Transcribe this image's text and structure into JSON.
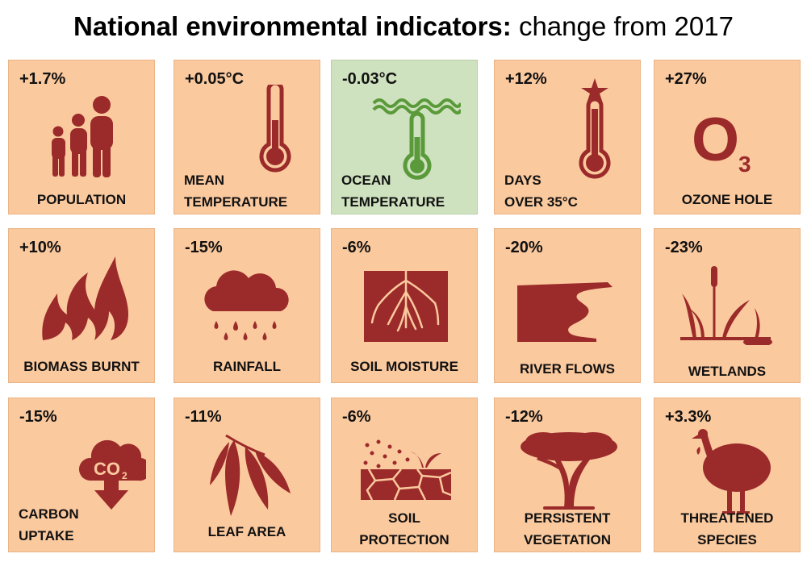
{
  "title": {
    "bold": "National environmental indicators:",
    "regular": "change from 2017"
  },
  "colors": {
    "tile": "#fbc99e",
    "tile_ocean": "#cfe2bf",
    "icon": "#9b2a2a",
    "icon_ocean": "#5a9a3a"
  },
  "tiles": [
    {
      "value": "+1.7%",
      "label": [
        "POPULATION"
      ],
      "icon": "people-icon"
    },
    {
      "value": "+0.05°C",
      "label": [
        "MEAN",
        "TEMPERATURE"
      ],
      "icon": "thermometer-icon"
    },
    {
      "value": "-0.03°C",
      "label": [
        "OCEAN",
        "TEMPERATURE"
      ],
      "icon": "ocean-thermometer-icon"
    },
    {
      "value": "+12%",
      "label": [
        "DAYS",
        "OVER 35°C"
      ],
      "icon": "hot-thermometer-icon"
    },
    {
      "value": "+27%",
      "label": [
        "OZONE HOLE"
      ],
      "icon": "ozone-icon",
      "icon_text": "O",
      "icon_sub": "3"
    },
    {
      "value": "+10%",
      "label": [
        "BIOMASS BURNT"
      ],
      "icon": "fire-icon"
    },
    {
      "value": "-15%",
      "label": [
        "RAINFALL"
      ],
      "icon": "rain-cloud-icon"
    },
    {
      "value": "-6%",
      "label": [
        "SOIL MOISTURE"
      ],
      "icon": "soil-roots-icon"
    },
    {
      "value": "-20%",
      "label": [
        "RIVER FLOWS"
      ],
      "icon": "river-icon"
    },
    {
      "value": "-23%",
      "label": [
        "WETLANDS"
      ],
      "icon": "reeds-icon"
    },
    {
      "value": "-15%",
      "label": [
        "CARBON",
        "UPTAKE"
      ],
      "icon": "co2-cloud-icon",
      "icon_text": "CO",
      "icon_sub": "2"
    },
    {
      "value": "-11%",
      "label": [
        "LEAF AREA"
      ],
      "icon": "eucalyptus-leaf-icon"
    },
    {
      "value": "-6%",
      "label": [
        "SOIL",
        "PROTECTION"
      ],
      "icon": "cracked-soil-icon"
    },
    {
      "value": "-12%",
      "label": [
        "PERSISTENT",
        "VEGETATION"
      ],
      "icon": "tree-icon"
    },
    {
      "value": "+3.3%",
      "label": [
        "THREATENED",
        "SPECIES"
      ],
      "icon": "cassowary-icon"
    }
  ]
}
